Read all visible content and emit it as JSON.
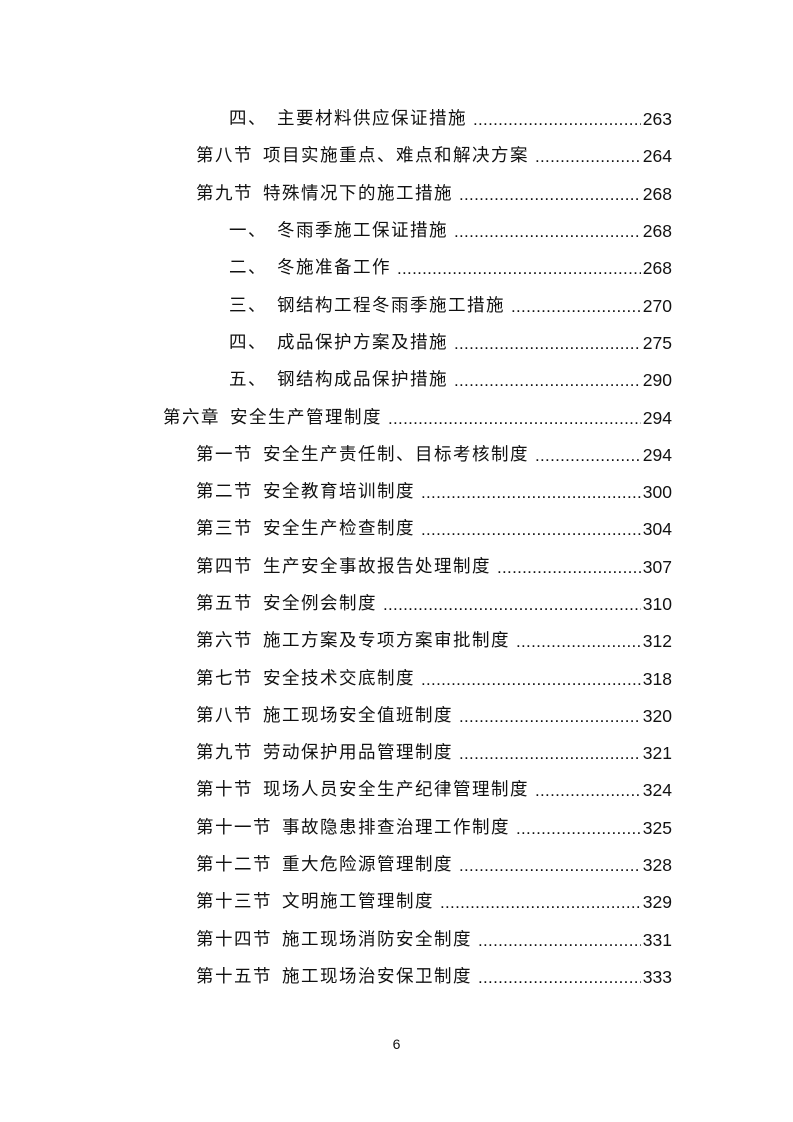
{
  "toc": [
    {
      "level": 2,
      "num": "四、",
      "title": "主要材料供应保证措施",
      "page": "263"
    },
    {
      "level": 1,
      "num": "第八节",
      "title": "项目实施重点、难点和解决方案",
      "page": "264"
    },
    {
      "level": 1,
      "num": "第九节",
      "title": "特殊情况下的施工措施",
      "page": "268"
    },
    {
      "level": 2,
      "num": "一、",
      "title": "冬雨季施工保证措施",
      "page": "268"
    },
    {
      "level": 2,
      "num": "二、",
      "title": "冬施准备工作",
      "page": "268"
    },
    {
      "level": 2,
      "num": "三、",
      "title": "钢结构工程冬雨季施工措施",
      "page": "270"
    },
    {
      "level": 2,
      "num": "四、",
      "title": "成品保护方案及措施",
      "page": "275"
    },
    {
      "level": 2,
      "num": "五、",
      "title": "钢结构成品保护措施",
      "page": "290"
    },
    {
      "level": 0,
      "num": "第六章",
      "title": "安全生产管理制度",
      "page": "294"
    },
    {
      "level": 1,
      "num": "第一节",
      "title": "安全生产责任制、目标考核制度",
      "page": "294"
    },
    {
      "level": 1,
      "num": "第二节",
      "title": "安全教育培训制度",
      "page": "300"
    },
    {
      "level": 1,
      "num": "第三节",
      "title": "安全生产检查制度",
      "page": "304"
    },
    {
      "level": 1,
      "num": "第四节",
      "title": "生产安全事故报告处理制度",
      "page": "307"
    },
    {
      "level": 1,
      "num": "第五节",
      "title": "安全例会制度",
      "page": "310"
    },
    {
      "level": 1,
      "num": "第六节",
      "title": "施工方案及专项方案审批制度",
      "page": "312"
    },
    {
      "level": 1,
      "num": "第七节",
      "title": "安全技术交底制度",
      "page": "318"
    },
    {
      "level": 1,
      "num": "第八节",
      "title": "施工现场安全值班制度",
      "page": "320"
    },
    {
      "level": 1,
      "num": "第九节",
      "title": "劳动保护用品管理制度",
      "page": "321"
    },
    {
      "level": 1,
      "num": "第十节",
      "title": "现场人员安全生产纪律管理制度",
      "page": "324"
    },
    {
      "level": 1,
      "num": "第十一节",
      "title": "事故隐患排查治理工作制度",
      "page": "325"
    },
    {
      "level": 1,
      "num": "第十二节",
      "title": "重大危险源管理制度",
      "page": "328"
    },
    {
      "level": 1,
      "num": "第十三节",
      "title": "文明施工管理制度",
      "page": "329"
    },
    {
      "level": 1,
      "num": "第十四节",
      "title": "施工现场消防安全制度",
      "page": "331"
    },
    {
      "level": 1,
      "num": "第十五节",
      "title": "施工现场治安保卫制度",
      "page": "333"
    }
  ],
  "footer": {
    "page_number": "6"
  }
}
